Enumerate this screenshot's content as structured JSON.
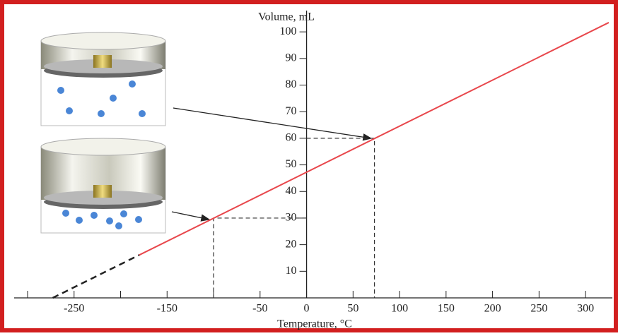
{
  "chart_data": {
    "type": "line",
    "y_label": "Volume, mL",
    "x_label": "Temperature, °C",
    "xlim": [
      -300,
      325
    ],
    "ylim": [
      0,
      108
    ],
    "xticks": [
      -250,
      -150,
      -50,
      0,
      50,
      100,
      150,
      200,
      250,
      300
    ],
    "xminor_ticks": [
      -300,
      -200,
      -100
    ],
    "yticks": [
      10,
      20,
      30,
      40,
      50,
      60,
      70,
      80,
      90,
      100
    ],
    "series": [
      {
        "color": "#e8474c",
        "style": "solid",
        "x": [
          -180,
          325
        ],
        "values": [
          16.1,
          103.5
        ]
      },
      {
        "color": "#222222",
        "style": "dashed",
        "x": [
          -273,
          -180
        ],
        "values": [
          0,
          16.1
        ]
      }
    ],
    "reference_points": [
      {
        "x": 73,
        "y": 60
      },
      {
        "x": -100,
        "y": 30
      }
    ]
  }
}
